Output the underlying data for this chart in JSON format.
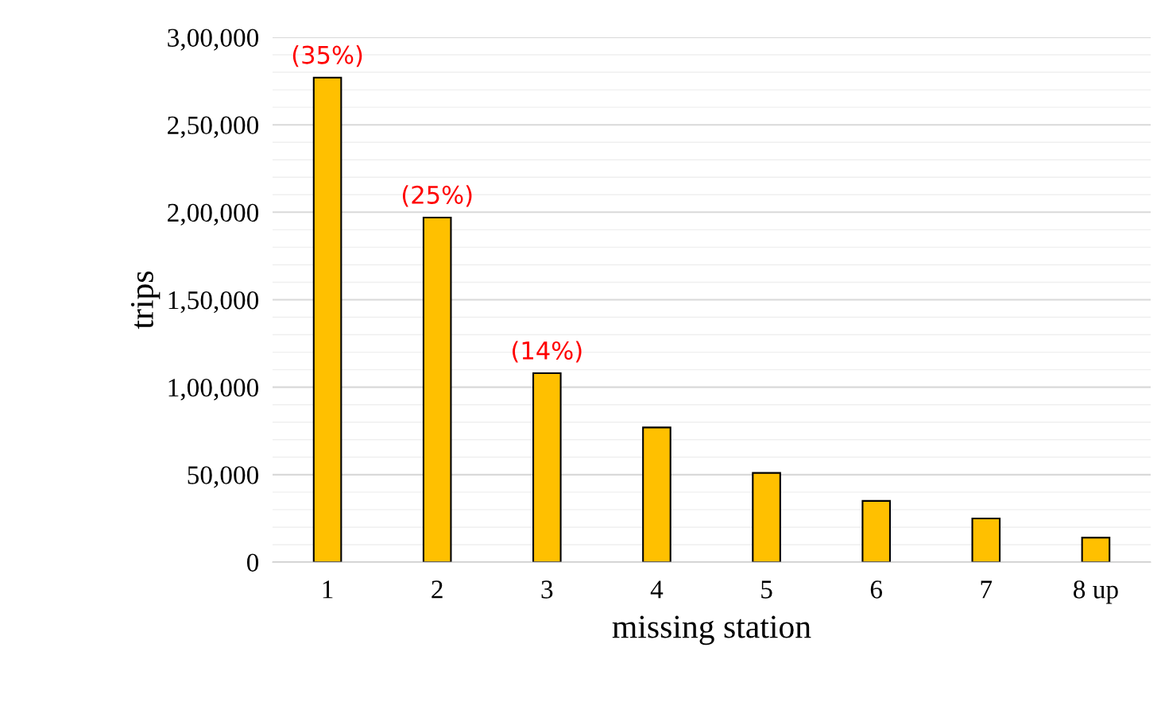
{
  "chart_data": {
    "type": "bar",
    "xlabel": "missing station",
    "ylabel": "trips",
    "categories": [
      "1",
      "2",
      "3",
      "4",
      "5",
      "6",
      "7",
      "8 up"
    ],
    "values": [
      277000,
      197000,
      108000,
      77000,
      51000,
      35000,
      25000,
      14000
    ],
    "color": "#ffc000",
    "ylim": [
      0,
      300000
    ],
    "yticks": [
      {
        "value": 0,
        "label": "0"
      },
      {
        "value": 10000,
        "label": null
      },
      {
        "value": 20000,
        "label": null
      },
      {
        "value": 30000,
        "label": null
      },
      {
        "value": 40000,
        "label": null
      },
      {
        "value": 50000,
        "label": "50,000"
      },
      {
        "value": 60000,
        "label": null
      },
      {
        "value": 70000,
        "label": null
      },
      {
        "value": 80000,
        "label": null
      },
      {
        "value": 90000,
        "label": null
      },
      {
        "value": 100000,
        "label": "1,00,000"
      },
      {
        "value": 110000,
        "label": null
      },
      {
        "value": 120000,
        "label": null
      },
      {
        "value": 130000,
        "label": null
      },
      {
        "value": 140000,
        "label": null
      },
      {
        "value": 150000,
        "label": "1,50,000"
      },
      {
        "value": 160000,
        "label": null
      },
      {
        "value": 170000,
        "label": null
      },
      {
        "value": 180000,
        "label": null
      },
      {
        "value": 190000,
        "label": null
      },
      {
        "value": 200000,
        "label": "2,00,000"
      },
      {
        "value": 210000,
        "label": null
      },
      {
        "value": 220000,
        "label": null
      },
      {
        "value": 230000,
        "label": null
      },
      {
        "value": 240000,
        "label": null
      },
      {
        "value": 250000,
        "label": "2,50,000"
      },
      {
        "value": 260000,
        "label": null
      },
      {
        "value": 270000,
        "label": null
      },
      {
        "value": 280000,
        "label": null
      },
      {
        "value": 290000,
        "label": null
      },
      {
        "value": 300000,
        "label": "3,00,000"
      }
    ],
    "grid": "y",
    "annotations": [
      {
        "text": "(35%)",
        "x": "1",
        "y": 277000
      },
      {
        "text": "(25%)",
        "x": "2",
        "y": 197000
      },
      {
        "text": "(14%)",
        "x": "3",
        "y": 108000
      }
    ]
  }
}
